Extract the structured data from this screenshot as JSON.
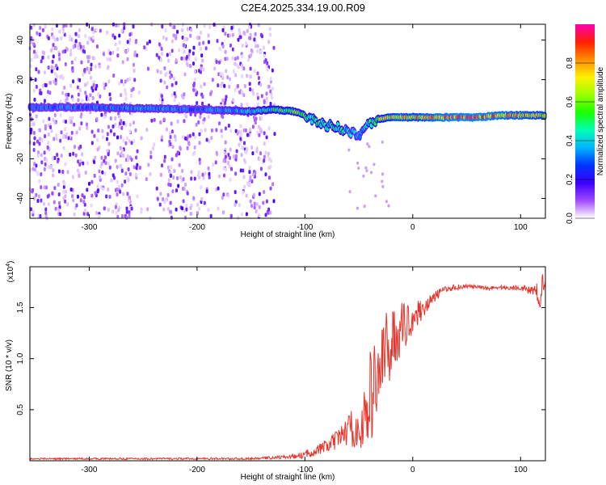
{
  "figure": {
    "title": "C2E4.2025.334.19.00.R09"
  },
  "chart_data": [
    {
      "type": "heatmap",
      "name": "spectrogram",
      "title": "C2E4.2025.334.19.00.R09",
      "xlabel": "Height of straight line (km)",
      "ylabel": "Frequency (Hz)",
      "xlim": [
        -355,
        123
      ],
      "ylim": [
        -50,
        48
      ],
      "xticks": [
        -300,
        -200,
        -100,
        0,
        100
      ],
      "yticks": [
        -40,
        -20,
        0,
        20,
        40
      ],
      "colorbar": {
        "label": "Normalized spectral amplitude",
        "range": [
          0,
          1
        ],
        "ticks": [
          "0.0",
          "0.2",
          "0.4",
          "0.6",
          "0.8"
        ],
        "colors": [
          "#ffffff",
          "#a04bff",
          "#3c00ff",
          "#0033ff",
          "#00b4ff",
          "#00ffb4",
          "#19ff00",
          "#9bff00",
          "#fff000",
          "#ff8c00",
          "#ff1e00",
          "#ff00b4"
        ]
      },
      "ridge": {
        "x": [
          -355,
          -300,
          -250,
          -200,
          -150,
          -130,
          -110,
          -100,
          -90,
          -80,
          -70,
          -60,
          -50,
          -40,
          -30,
          -20,
          -10,
          0,
          20,
          40,
          60,
          80,
          100,
          123
        ],
        "freq": [
          6,
          6,
          5.5,
          5,
          4,
          5,
          4,
          2,
          -1,
          -3,
          -4,
          -6,
          -8,
          -2,
          0,
          1,
          1,
          1,
          1,
          1,
          1,
          2,
          2,
          2
        ],
        "amplitude": [
          0.35,
          0.35,
          0.4,
          0.35,
          0.45,
          0.55,
          0.65,
          0.6,
          0.55,
          0.5,
          0.55,
          0.45,
          0.4,
          0.55,
          0.7,
          0.8,
          0.85,
          0.8,
          0.9,
          0.95,
          0.95,
          0.9,
          0.85,
          0.8
        ]
      }
    },
    {
      "type": "line",
      "name": "snr",
      "xlabel": "Height of straight line (km)",
      "ylabel": "SNR (10 * v/v)",
      "yscale_label": "(x10",
      "yscale_exp": "4",
      "yscale_close": ")",
      "xlim": [
        -355,
        123
      ],
      "ylim": [
        0,
        1.9
      ],
      "xticks": [
        -300,
        -200,
        -100,
        0,
        100
      ],
      "yticks": [
        0.5,
        1.0,
        1.5
      ],
      "ytick_labels": [
        "0.5",
        "1.0",
        "1.5"
      ],
      "color": "#e8332a",
      "series": [
        {
          "name": "SNR",
          "x": [
            -355,
            -300,
            -250,
            -200,
            -150,
            -130,
            -110,
            -100,
            -90,
            -80,
            -70,
            -65,
            -60,
            -55,
            -50,
            -45,
            -40,
            -35,
            -30,
            -25,
            -20,
            -15,
            -10,
            -5,
            0,
            5,
            10,
            15,
            20,
            25,
            30,
            40,
            50,
            60,
            70,
            80,
            90,
            100,
            110,
            115,
            118,
            120,
            123
          ],
          "y": [
            0.02,
            0.02,
            0.02,
            0.02,
            0.02,
            0.03,
            0.04,
            0.06,
            0.1,
            0.14,
            0.2,
            0.26,
            0.3,
            0.33,
            0.25,
            0.4,
            0.6,
            0.75,
            0.9,
            1.05,
            1.15,
            1.25,
            1.3,
            1.35,
            1.4,
            1.45,
            1.5,
            1.55,
            1.6,
            1.65,
            1.68,
            1.7,
            1.71,
            1.7,
            1.69,
            1.7,
            1.69,
            1.7,
            1.66,
            1.7,
            1.4,
            1.78,
            1.72
          ],
          "noise": [
            0.008,
            0.008,
            0.01,
            0.01,
            0.01,
            0.015,
            0.02,
            0.04,
            0.05,
            0.07,
            0.1,
            0.12,
            0.15,
            0.2,
            0.15,
            0.3,
            0.45,
            0.5,
            0.5,
            0.4,
            0.35,
            0.3,
            0.25,
            0.2,
            0.15,
            0.12,
            0.1,
            0.07,
            0.05,
            0.04,
            0.03,
            0.03,
            0.02,
            0.02,
            0.02,
            0.02,
            0.02,
            0.03,
            0.04,
            0.08,
            0.12,
            0.1,
            0.06
          ]
        }
      ]
    }
  ]
}
